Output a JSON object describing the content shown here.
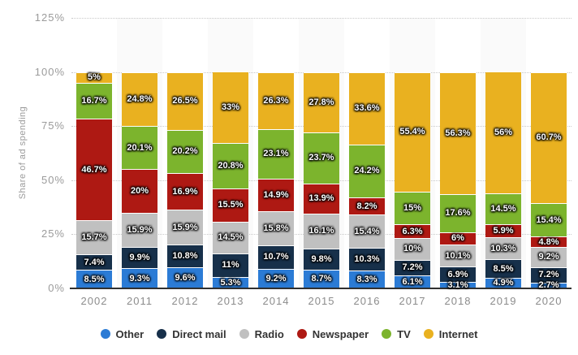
{
  "chart_data": {
    "type": "bar",
    "stacked": true,
    "orientation": "vertical",
    "title": "",
    "ylabel": "Share of ad spending",
    "xlabel": "",
    "ylim": [
      0,
      125
    ],
    "grid": "horizontal-dotted",
    "legend_position": "bottom",
    "value_suffix": "%",
    "categories": [
      "2002",
      "2011",
      "2012",
      "2013",
      "2014",
      "2015",
      "2016",
      "2017",
      "2018",
      "2019",
      "2020"
    ],
    "series": [
      {
        "name": "Other",
        "color": "#2b7bd5",
        "values": [
          8.5,
          9.3,
          9.6,
          5.3,
          9.2,
          8.7,
          8.3,
          6.1,
          3.1,
          4.9,
          2.7
        ]
      },
      {
        "name": "Direct mail",
        "color": "#17304a",
        "values": [
          7.4,
          9.9,
          10.8,
          11,
          10.7,
          9.8,
          10.3,
          7.2,
          6.9,
          8.5,
          7.2
        ]
      },
      {
        "name": "Radio",
        "color": "#c0c0c0",
        "values": [
          15.7,
          15.9,
          15.9,
          14.5,
          15.8,
          16.1,
          15.4,
          10,
          10.1,
          10.3,
          9.2
        ]
      },
      {
        "name": "Newspaper",
        "color": "#ae1913",
        "values": [
          46.7,
          20,
          16.9,
          15.5,
          14.9,
          13.9,
          8.2,
          6.3,
          6,
          5.9,
          4.8
        ]
      },
      {
        "name": "TV",
        "color": "#7cb42d",
        "values": [
          16.7,
          20.1,
          20.2,
          20.8,
          23.1,
          23.7,
          24.2,
          15,
          17.6,
          14.5,
          15.4
        ]
      },
      {
        "name": "Internet",
        "color": "#e9b120",
        "values": [
          5,
          24.8,
          26.5,
          33,
          26.3,
          27.8,
          33.6,
          55.4,
          56.3,
          56,
          60.7
        ]
      }
    ],
    "yticks": [
      {
        "value": 0,
        "label": "0%"
      },
      {
        "value": 25,
        "label": "25%"
      },
      {
        "value": 50,
        "label": "50%"
      },
      {
        "value": 75,
        "label": "75%"
      },
      {
        "value": 100,
        "label": "100%"
      },
      {
        "value": 125,
        "label": "125%"
      }
    ],
    "highlighted_columns": [
      "2011",
      "2013",
      "2015",
      "2017",
      "2019"
    ],
    "colors": {
      "background": "#ffffff",
      "column_band": "#fafafa",
      "gridline": "#c9c9c9",
      "axis_line": "#303030",
      "tick_text": "#9b9b9b",
      "category_text": "#8c8c8c",
      "legend_text": "#333333",
      "bar_label_text": "#ffffff"
    }
  }
}
